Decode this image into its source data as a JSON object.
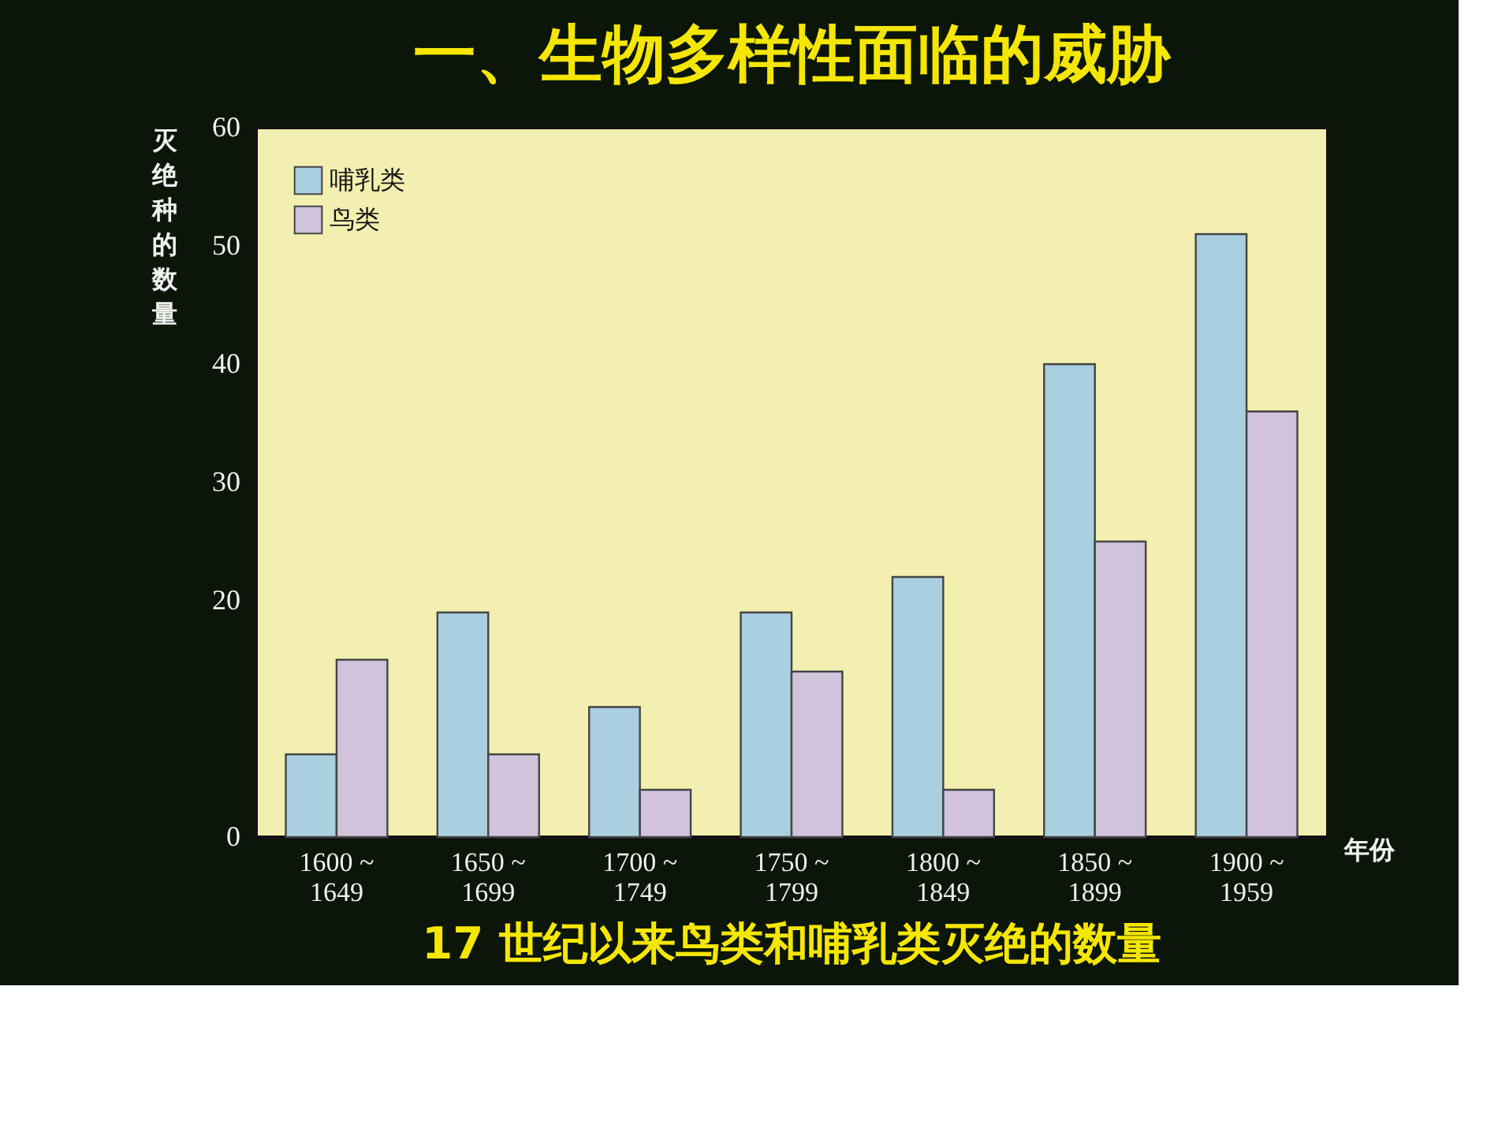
{
  "chart_data": {
    "type": "bar",
    "title": "一、生物多样性面临的威胁",
    "ylabel": "灭绝种的数量",
    "xlabel": "年份",
    "categories": [
      "1600 ~\n1649",
      "1650 ~\n1699",
      "1700 ~\n1749",
      "1750 ~\n1799",
      "1800 ~\n1849",
      "1850 ~\n1899",
      "1900 ~\n1959"
    ],
    "series": [
      {
        "name": "哺乳类",
        "color": "#a9cfe0",
        "values": [
          7,
          19,
          11,
          19,
          22,
          40,
          51
        ]
      },
      {
        "name": "鸟类",
        "color": "#cfc4dc",
        "values": [
          15,
          7,
          4,
          14,
          4,
          25,
          36
        ]
      }
    ],
    "ylim": [
      0,
      60
    ],
    "yticks": [
      0,
      20,
      30,
      40,
      50,
      60
    ],
    "grid": false,
    "legend": "top left",
    "annotations": [
      "17 世纪以来鸟类和哺乳类灭绝的数量"
    ]
  }
}
